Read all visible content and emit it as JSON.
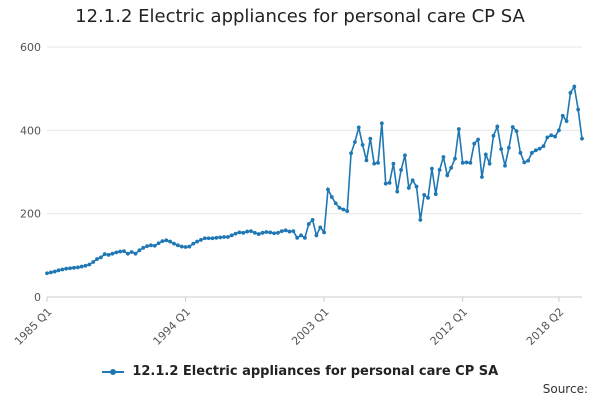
{
  "chart_data": {
    "type": "line",
    "title": "12.1.2 Electric appliances for personal care CP SA",
    "xlabel": "",
    "ylabel": "",
    "ylim": [
      0,
      600
    ],
    "yticks": [
      "0",
      "200",
      "400",
      "600"
    ],
    "xticks": [
      "1985 Q1",
      "1994 Q1",
      "2003 Q1",
      "2012 Q1",
      "2018 Q2"
    ],
    "grid": true,
    "legend_position": "bottom",
    "colors": {
      "series": "#1f77b4",
      "grid": "#e6e6e6",
      "axis": "#cccccc"
    },
    "source_label": "Source:",
    "series": [
      {
        "name": "12.1.2 Electric appliances for personal care CP SA",
        "x_start": "1985 Q1",
        "frequency": "quarterly",
        "values": [
          57,
          59,
          61,
          64,
          66,
          68,
          69,
          70,
          71,
          73,
          75,
          78,
          84,
          91,
          95,
          103,
          101,
          104,
          107,
          109,
          110,
          104,
          108,
          104,
          112,
          118,
          122,
          124,
          123,
          129,
          134,
          136,
          133,
          128,
          124,
          121,
          120,
          121,
          128,
          133,
          137,
          141,
          141,
          141,
          142,
          143,
          144,
          144,
          148,
          152,
          155,
          154,
          157,
          158,
          154,
          151,
          154,
          156,
          155,
          153,
          154,
          158,
          160,
          157,
          158,
          142,
          148,
          142,
          175,
          185,
          148,
          167,
          155,
          258,
          240,
          225,
          214,
          210,
          206,
          345,
          372,
          407,
          365,
          328,
          380,
          320,
          322,
          417,
          272,
          274,
          320,
          253,
          305,
          340,
          262,
          280,
          265,
          185,
          245,
          238,
          308,
          247,
          305,
          336,
          292,
          310,
          332,
          403,
          322,
          323,
          322,
          368,
          378,
          288,
          342,
          320,
          387,
          409,
          355,
          315,
          358,
          408,
          398,
          346,
          323,
          327,
          346,
          352,
          356,
          362,
          383,
          388,
          385,
          400,
          435,
          422,
          490,
          505,
          450,
          380
        ]
      }
    ]
  }
}
